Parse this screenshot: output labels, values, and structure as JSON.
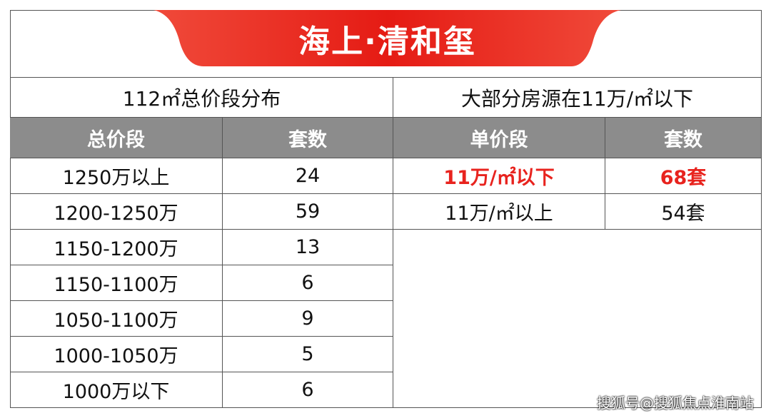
{
  "header": {
    "title": "海上·清和玺"
  },
  "left_table": {
    "title": "112㎡总价段分布",
    "columns": [
      "总价段",
      "套数"
    ],
    "rows": [
      [
        "1250万以上",
        24
      ],
      [
        "1200-1250万",
        59
      ],
      [
        "1150-1200万",
        13
      ],
      [
        "1150-1100万",
        6
      ],
      [
        "1050-1100万",
        9
      ],
      [
        "1000-1050万",
        5
      ],
      [
        "1000万以下",
        6
      ]
    ]
  },
  "right_table": {
    "title": "大部分房源在11万/㎡以下",
    "columns": [
      "单价段",
      "套数"
    ],
    "rows": [
      [
        "11万/㎡以下",
        "68套"
      ],
      [
        "11万/㎡以上",
        "54套"
      ]
    ]
  },
  "watermark": "搜狐号@搜狐焦点淮南站"
}
